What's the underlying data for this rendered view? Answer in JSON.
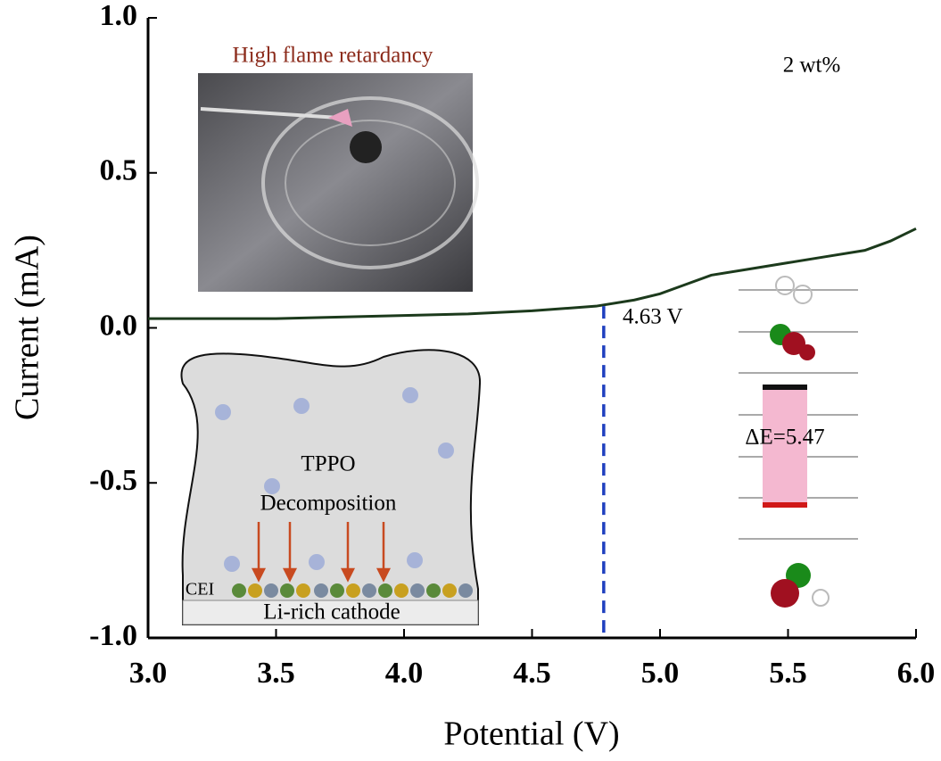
{
  "chart_data": {
    "type": "line",
    "xlabel": "Potential (V)",
    "ylabel": "Current (mA)",
    "x": [
      3.0,
      3.25,
      3.5,
      3.75,
      4.0,
      4.25,
      4.5,
      4.75,
      4.9,
      5.0,
      5.1,
      5.2,
      5.35,
      5.5,
      5.65,
      5.8,
      5.9,
      6.0
    ],
    "series": [
      {
        "color": "#1c3a1c",
        "values": [
          0.03,
          0.03,
          0.03,
          0.035,
          0.04,
          0.045,
          0.055,
          0.07,
          0.09,
          0.11,
          0.14,
          0.17,
          0.19,
          0.21,
          0.23,
          0.25,
          0.28,
          0.32
        ]
      }
    ],
    "xlim": [
      3,
      6
    ],
    "ylim": [
      -1,
      1
    ],
    "xticks": [
      {
        "value": 3,
        "label": "3.0"
      },
      {
        "value": 3.5,
        "label": "3.5"
      },
      {
        "value": 4,
        "label": "4.0"
      },
      {
        "value": 4.5,
        "label": "4.5"
      },
      {
        "value": 5,
        "label": "5.0"
      },
      {
        "value": 5.5,
        "label": "5.5"
      },
      {
        "value": 6,
        "label": "6.0"
      }
    ],
    "yticks": [
      {
        "value": -1,
        "label": "-1.0"
      },
      {
        "value": -0.5,
        "label": "-0.5"
      },
      {
        "value": 0,
        "label": "0.0"
      },
      {
        "value": 0.5,
        "label": "0.5"
      },
      {
        "value": 1,
        "label": "1.0"
      }
    ],
    "vline": 4.78,
    "vline_color": "#1f3fbf",
    "annotations": [
      "High flame retardancy",
      "2 wt%",
      "4.63 V",
      "TPPO",
      "Decomposition",
      "CEI",
      "Li-rich cathode",
      "ΔE=5.47"
    ]
  }
}
